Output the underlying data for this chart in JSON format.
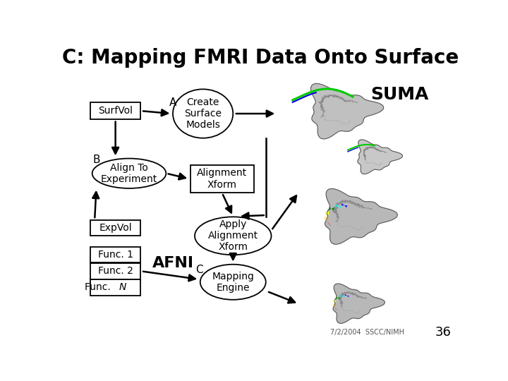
{
  "title": "C: Mapping FMRI Data Onto Surface",
  "title_fontsize": 20,
  "background_color": "#ffffff",
  "text_color": "#000000",
  "footnote_date": "7/2/2004  SSCC/NIMH",
  "footnote_num": "36",
  "label_A": "A",
  "label_B": "B",
  "label_C": "C",
  "label_AFNI": "AFNI",
  "label_SUMA": "SUMA",
  "SurfVol_label": "SurfVol",
  "CreateSurface_label": "Create\nSurface\nModels",
  "AlignTo_label": "Align To\nExperiment",
  "AlignXform_label": "Alignment\nXform",
  "ApplyAlign_label": "Apply\nAlignment\nXform",
  "ExpVol_label": "ExpVol",
  "Func1_label": "Func. 1",
  "Func2_label": "Func. 2",
  "MappingEngine_label": "Mapping\nEngine"
}
